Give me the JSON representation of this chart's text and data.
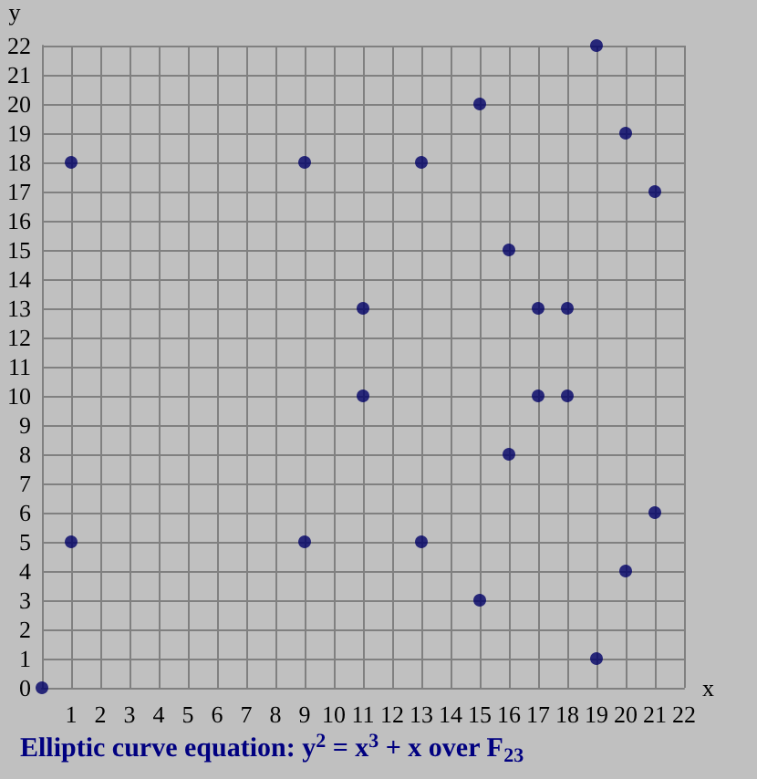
{
  "chart_data": {
    "type": "scatter",
    "title": "Elliptic curve equation: y$^{2}$ = x$^{3}$ + x over F$_{23}$",
    "xlabel": "x",
    "ylabel": "y",
    "x": [
      0,
      1,
      1,
      9,
      9,
      11,
      11,
      13,
      13,
      15,
      15,
      16,
      16,
      17,
      17,
      18,
      18,
      19,
      19,
      20,
      20,
      21,
      21
    ],
    "values": [
      0,
      5,
      18,
      5,
      18,
      10,
      13,
      5,
      18,
      3,
      20,
      8,
      15,
      10,
      13,
      10,
      13,
      1,
      22,
      4,
      19,
      6,
      17
    ],
    "color": "#000066",
    "marker": "circle",
    "grid": true,
    "xlim": [
      0,
      22
    ],
    "xticks": [
      {
        "value": 0,
        "label": null
      },
      1,
      2,
      3,
      4,
      5,
      6,
      7,
      8,
      9,
      10,
      11,
      12,
      13,
      14,
      15,
      16,
      17,
      18,
      19,
      20,
      21,
      22
    ],
    "ylim": [
      0,
      22
    ],
    "yticks": [
      0,
      1,
      2,
      3,
      4,
      5,
      6,
      7,
      8,
      9,
      10,
      11,
      12,
      13,
      14,
      15,
      16,
      17,
      18,
      19,
      20,
      21,
      22
    ]
  }
}
